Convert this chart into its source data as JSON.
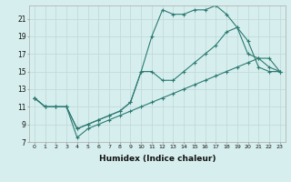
{
  "xlabel": "Humidex (Indice chaleur)",
  "bg_color": "#d6efee",
  "grid_color": "#c2dada",
  "line_color": "#2d7a72",
  "xlim": [
    -0.5,
    23.5
  ],
  "ylim": [
    7,
    22.5
  ],
  "yticks": [
    7,
    9,
    11,
    13,
    15,
    17,
    19,
    21
  ],
  "xticks": [
    0,
    1,
    2,
    3,
    4,
    5,
    6,
    7,
    8,
    9,
    10,
    11,
    12,
    13,
    14,
    15,
    16,
    17,
    18,
    19,
    20,
    21,
    22,
    23
  ],
  "series1_x": [
    0,
    1,
    2,
    3,
    4,
    5,
    6,
    7,
    8,
    9,
    10,
    11,
    12,
    13,
    14,
    15,
    16,
    17,
    18,
    19,
    20,
    21,
    22,
    23
  ],
  "series1_y": [
    12,
    11,
    11,
    11,
    8.5,
    9,
    9.5,
    10,
    10.5,
    11.5,
    15,
    19,
    22,
    21.5,
    21.5,
    22,
    22,
    22.5,
    21.5,
    20,
    18.5,
    15.5,
    15,
    15
  ],
  "series2_x": [
    0,
    1,
    2,
    3,
    4,
    5,
    6,
    7,
    8,
    9,
    10,
    11,
    12,
    13,
    14,
    15,
    16,
    17,
    18,
    19,
    20,
    21,
    22,
    23
  ],
  "series2_y": [
    12,
    11,
    11,
    11,
    8.5,
    9,
    9.5,
    10,
    10.5,
    11.5,
    15,
    15,
    14,
    14,
    15,
    16,
    17,
    18,
    19.5,
    20,
    17,
    16.5,
    15.5,
    15
  ],
  "series3_x": [
    0,
    1,
    2,
    3,
    4,
    5,
    6,
    7,
    8,
    9,
    10,
    11,
    12,
    13,
    14,
    15,
    16,
    17,
    18,
    19,
    20,
    21,
    22,
    23
  ],
  "series3_y": [
    12,
    11,
    11,
    11,
    7.5,
    8.5,
    9,
    9.5,
    10,
    10.5,
    11,
    11.5,
    12,
    12.5,
    13,
    13.5,
    14,
    14.5,
    15,
    15.5,
    16,
    16.5,
    16.5,
    15
  ]
}
